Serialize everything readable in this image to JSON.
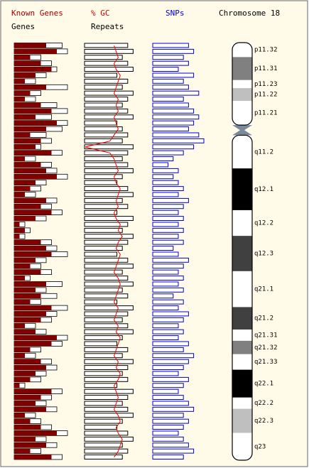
{
  "header": {
    "known_genes": "Known Genes",
    "genes": "Genes",
    "gc": "% GC",
    "repeats": "Repeats",
    "snps": "SNPs",
    "chromosome": "Chromosome 18"
  },
  "tracks": {
    "known": [
      6,
      8,
      3,
      5,
      7,
      4,
      2,
      6,
      3,
      2,
      5,
      7,
      4,
      8,
      6,
      3,
      5,
      4,
      7,
      2,
      5,
      6,
      8,
      4,
      3,
      2,
      6,
      5,
      7,
      4,
      1,
      2,
      1,
      5,
      6,
      7,
      4,
      3,
      5,
      2,
      6,
      4,
      5,
      3,
      7,
      6,
      5,
      2,
      4,
      8,
      7,
      3,
      2,
      5,
      6,
      4,
      3,
      1,
      7,
      5,
      4,
      6,
      2,
      3,
      5,
      8,
      4,
      6,
      3,
      7
    ],
    "genes": [
      9,
      10,
      5,
      7,
      8,
      6,
      4,
      10,
      5,
      4,
      8,
      10,
      7,
      10,
      9,
      6,
      7,
      5,
      9,
      4,
      7,
      8,
      10,
      6,
      5,
      4,
      8,
      7,
      9,
      6,
      2,
      3,
      2,
      7,
      8,
      10,
      6,
      5,
      7,
      3,
      9,
      6,
      8,
      5,
      10,
      8,
      7,
      4,
      6,
      10,
      9,
      5,
      4,
      7,
      8,
      6,
      5,
      2,
      9,
      7,
      6,
      8,
      4,
      5,
      7,
      10,
      6,
      8,
      5,
      9
    ],
    "repeats": [
      8,
      9,
      7,
      8,
      9,
      6,
      8,
      7,
      9,
      8,
      7,
      8,
      9,
      6,
      7,
      8,
      7,
      9,
      8,
      7,
      8,
      9,
      7,
      6,
      8,
      9,
      7,
      8,
      6,
      9,
      8,
      7,
      9,
      8,
      7,
      6,
      8,
      9,
      7,
      8,
      9,
      7,
      8,
      6,
      9,
      8,
      7,
      8,
      9,
      7,
      6,
      8,
      7,
      9,
      8,
      7,
      8,
      6,
      9,
      8,
      7,
      8,
      9,
      7,
      6,
      8,
      9,
      7,
      8,
      7
    ],
    "snps": [
      7,
      8,
      6,
      7,
      5,
      8,
      6,
      7,
      9,
      6,
      7,
      8,
      9,
      8,
      7,
      9,
      10,
      8,
      6,
      4,
      3,
      5,
      4,
      5,
      6,
      5,
      7,
      6,
      5,
      6,
      5,
      6,
      5,
      6,
      4,
      5,
      7,
      6,
      5,
      6,
      5,
      6,
      4,
      6,
      5,
      7,
      6,
      5,
      6,
      5,
      7,
      6,
      8,
      7,
      6,
      5,
      7,
      6,
      5,
      6,
      7,
      8,
      6,
      7,
      6,
      5,
      6,
      7,
      8,
      6
    ],
    "gc": [
      44,
      45,
      46,
      44,
      45,
      47,
      46,
      45,
      44,
      46,
      45,
      46,
      44,
      45,
      46,
      44,
      42,
      30,
      42,
      44,
      45,
      46,
      44,
      45,
      47,
      46,
      45,
      46,
      44,
      45,
      47,
      46,
      48,
      46,
      45,
      47,
      46,
      45,
      44,
      46,
      47,
      46,
      45,
      44,
      46,
      45,
      44,
      46,
      45,
      47,
      46,
      45,
      44,
      46,
      45,
      47,
      46,
      44,
      45,
      46,
      45,
      44,
      46,
      47,
      45,
      46,
      48,
      47,
      46,
      44
    ]
  },
  "bands": [
    {
      "label": "p11.32",
      "start": 0,
      "end": 2.7,
      "stain": 0
    },
    {
      "label": "p11.31",
      "start": 2.7,
      "end": 7.0,
      "stain": 50
    },
    {
      "label": "p11.23",
      "start": 7.0,
      "end": 8.5,
      "stain": 0
    },
    {
      "label": "p11.22",
      "start": 8.5,
      "end": 10.9,
      "stain": 25
    },
    {
      "label": "p11.21",
      "start": 10.9,
      "end": 15.4,
      "stain": 0
    },
    {
      "label": "q11.2",
      "start": 17.3,
      "end": 23.5,
      "stain": 0
    },
    {
      "label": "q12.1",
      "start": 23.5,
      "end": 31.3,
      "stain": 100
    },
    {
      "label": "q12.2",
      "start": 31.3,
      "end": 36.1,
      "stain": 0
    },
    {
      "label": "q12.3",
      "start": 36.1,
      "end": 42.7,
      "stain": 75
    },
    {
      "label": "q21.1",
      "start": 42.7,
      "end": 49.4,
      "stain": 0
    },
    {
      "label": "q21.2",
      "start": 49.4,
      "end": 53.6,
      "stain": 75
    },
    {
      "label": "q21.31",
      "start": 53.6,
      "end": 55.7,
      "stain": 0
    },
    {
      "label": "q21.32",
      "start": 55.7,
      "end": 58.2,
      "stain": 50
    },
    {
      "label": "q21.33",
      "start": 58.2,
      "end": 61.1,
      "stain": 0
    },
    {
      "label": "q22.1",
      "start": 61.1,
      "end": 66.3,
      "stain": 100
    },
    {
      "label": "q22.2",
      "start": 66.3,
      "end": 68.4,
      "stain": 0
    },
    {
      "label": "q22.3",
      "start": 68.4,
      "end": 72.9,
      "stain": 25
    },
    {
      "label": "q23",
      "start": 72.9,
      "end": 78.0,
      "stain": 0
    }
  ]
}
